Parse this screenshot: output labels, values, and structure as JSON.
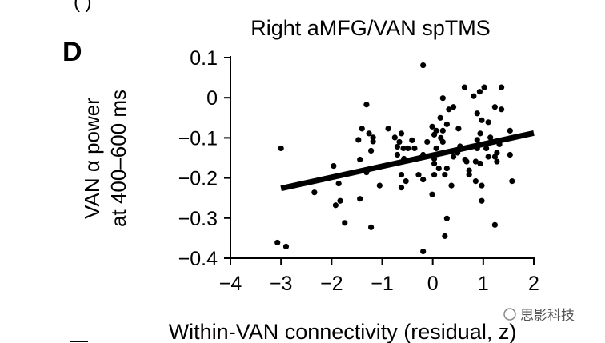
{
  "panel_label": "D",
  "top_fragment": "(   )",
  "watermark": "思影科技",
  "chart_data": {
    "type": "scatter",
    "title": "Right aMFG/VAN spTMS",
    "xlabel": "Within-VAN connectivity (residual, z)",
    "ylabel_line1": "VAN α power",
    "ylabel_line2": "at 400–600 ms",
    "xlim": [
      -4,
      2
    ],
    "ylim": [
      -0.4,
      0.1
    ],
    "xticks": [
      "−4",
      "−3",
      "−2",
      "−1",
      "0",
      "1",
      "2"
    ],
    "xtick_values": [
      -4,
      -3,
      -2,
      -1,
      0,
      1,
      2
    ],
    "yticks": [
      "0.1",
      "0",
      "−0.1",
      "−0.2",
      "−0.3",
      "−0.4"
    ],
    "ytick_values": [
      0.1,
      0,
      -0.1,
      -0.2,
      -0.3,
      -0.4
    ],
    "grid": false,
    "fit_line": {
      "x": [
        -3.0,
        2.0
      ],
      "y": [
        -0.226,
        -0.088
      ]
    },
    "points": [
      [
        -3.0,
        -0.126
      ],
      [
        -3.07,
        -0.361
      ],
      [
        -2.9,
        -0.371
      ],
      [
        -2.34,
        -0.236
      ],
      [
        -1.96,
        -0.17
      ],
      [
        -1.86,
        -0.214
      ],
      [
        -1.92,
        -0.268
      ],
      [
        -1.83,
        -0.257
      ],
      [
        -1.74,
        -0.312
      ],
      [
        -1.44,
        -0.252
      ],
      [
        -1.44,
        -0.154
      ],
      [
        -1.47,
        -0.105
      ],
      [
        -1.4,
        -0.077
      ],
      [
        -1.31,
        -0.017
      ],
      [
        -1.26,
        -0.089
      ],
      [
        -1.18,
        -0.099
      ],
      [
        -1.18,
        -0.109
      ],
      [
        -1.22,
        -0.132
      ],
      [
        -1.31,
        -0.186
      ],
      [
        -1.22,
        -0.323
      ],
      [
        -1.05,
        -0.219
      ],
      [
        -0.88,
        -0.077
      ],
      [
        -0.75,
        -0.099
      ],
      [
        -0.66,
        -0.11
      ],
      [
        -0.7,
        -0.122
      ],
      [
        -0.62,
        -0.089
      ],
      [
        -0.7,
        -0.142
      ],
      [
        -0.58,
        -0.126
      ],
      [
        -0.49,
        -0.126
      ],
      [
        -0.41,
        -0.106
      ],
      [
        -0.36,
        -0.126
      ],
      [
        -0.62,
        -0.192
      ],
      [
        -0.53,
        -0.208
      ],
      [
        -0.62,
        -0.224
      ],
      [
        -0.57,
        -0.152
      ],
      [
        -0.28,
        -0.192
      ],
      [
        -0.19,
        -0.204
      ],
      [
        -0.19,
        0.081
      ],
      [
        -0.11,
        -0.11
      ],
      [
        -0.19,
        -0.142
      ],
      [
        -0.01,
        -0.241
      ],
      [
        -0.19,
        -0.383
      ],
      [
        -0.01,
        -0.072
      ],
      [
        0.03,
        -0.092
      ],
      [
        0.07,
        -0.082
      ],
      [
        0.2,
        -0.082
      ],
      [
        0.15,
        -0.05
      ],
      [
        0.2,
        -0.001
      ],
      [
        0.16,
        -0.1
      ],
      [
        0.2,
        -0.11
      ],
      [
        0.07,
        -0.126
      ],
      [
        0.03,
        -0.152
      ],
      [
        0.03,
        -0.164
      ],
      [
        0.12,
        -0.176
      ],
      [
        0.03,
        -0.192
      ],
      [
        0.24,
        -0.192
      ],
      [
        0.28,
        -0.176
      ],
      [
        0.28,
        -0.066
      ],
      [
        0.32,
        -0.029
      ],
      [
        0.41,
        -0.023
      ],
      [
        0.28,
        -0.301
      ],
      [
        0.24,
        -0.345
      ],
      [
        0.37,
        -0.219
      ],
      [
        0.41,
        -0.147
      ],
      [
        0.51,
        -0.077
      ],
      [
        0.54,
        -0.121
      ],
      [
        0.49,
        -0.137
      ],
      [
        0.63,
        0.026
      ],
      [
        0.64,
        -0.154
      ],
      [
        0.67,
        -0.159
      ],
      [
        0.72,
        -0.181
      ],
      [
        0.72,
        -0.192
      ],
      [
        0.85,
        -0.208
      ],
      [
        0.81,
        0.004
      ],
      [
        0.93,
        0.015
      ],
      [
        1.02,
        0.026
      ],
      [
        0.88,
        -0.039
      ],
      [
        0.97,
        -0.056
      ],
      [
        0.94,
        -0.089
      ],
      [
        0.88,
        -0.105
      ],
      [
        0.88,
        -0.126
      ],
      [
        0.85,
        -0.159
      ],
      [
        0.94,
        -0.164
      ],
      [
        0.97,
        -0.219
      ],
      [
        0.97,
        -0.257
      ],
      [
        1.1,
        -0.061
      ],
      [
        1.14,
        -0.099
      ],
      [
        1.06,
        -0.126
      ],
      [
        1.1,
        -0.147
      ],
      [
        1.23,
        -0.023
      ],
      [
        1.36,
        0.026
      ],
      [
        1.36,
        -0.029
      ],
      [
        1.23,
        -0.147
      ],
      [
        1.27,
        -0.159
      ],
      [
        1.27,
        -0.137
      ],
      [
        1.32,
        -0.116
      ],
      [
        1.23,
        -0.317
      ],
      [
        1.53,
        -0.082
      ],
      [
        1.53,
        -0.142
      ],
      [
        1.57,
        -0.208
      ]
    ]
  }
}
